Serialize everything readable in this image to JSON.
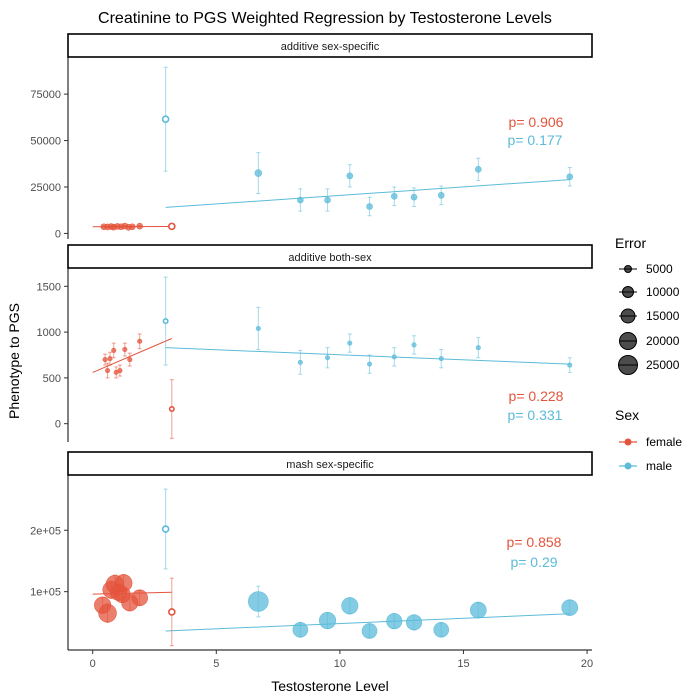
{
  "chart_data": {
    "type": "scatter",
    "title": "Creatinine to PGS Weighted Regression by Testosterone Levels",
    "xlabel": "Testosterone Level",
    "ylabel": "Phenotype to PGS",
    "xlim": [
      -1,
      20.2
    ],
    "x_ticks": [
      0,
      5,
      10,
      15,
      20
    ],
    "x_tick_labels": [
      "0",
      "5",
      "10",
      "15",
      "20"
    ],
    "grid": false,
    "legend_placement": "right",
    "colors": {
      "female": "#E4543C",
      "male": "#5BBBD9"
    },
    "legends": {
      "error": {
        "title": "Error",
        "entries": [
          "5000",
          "10000",
          "15000",
          "20000",
          "25000"
        ]
      },
      "sex": {
        "title": "Sex",
        "entries": [
          {
            "key": "female",
            "label": "female"
          },
          {
            "key": "male",
            "label": "male"
          }
        ]
      }
    },
    "panels": [
      {
        "strip": "additive sex-specific",
        "ylim": [
          -3000,
          95000
        ],
        "y_ticks": [
          0,
          25000,
          50000,
          75000
        ],
        "y_tick_labels": [
          "0",
          "25000",
          "50000",
          "75000"
        ],
        "pvalues": [
          {
            "sex": "female",
            "label": "p= 0.906"
          },
          {
            "sex": "male",
            "label": "p= 0.177"
          }
        ],
        "series": [
          {
            "sex": "female",
            "points": [
              {
                "x": 0.45,
                "y": 3600,
                "err": 300,
                "size": 1000
              },
              {
                "x": 0.6,
                "y": 3500,
                "err": 300,
                "size": 1000
              },
              {
                "x": 0.75,
                "y": 3700,
                "err": 300,
                "size": 1000
              },
              {
                "x": 0.85,
                "y": 3400,
                "err": 300,
                "size": 1000
              },
              {
                "x": 1.0,
                "y": 3800,
                "err": 300,
                "size": 1000
              },
              {
                "x": 1.15,
                "y": 3600,
                "err": 300,
                "size": 1000
              },
              {
                "x": 1.3,
                "y": 4000,
                "err": 300,
                "size": 1000
              },
              {
                "x": 1.45,
                "y": 3300,
                "err": 300,
                "size": 1000
              },
              {
                "x": 1.6,
                "y": 3600,
                "err": 300,
                "size": 1000
              },
              {
                "x": 1.9,
                "y": 3900,
                "err": 300,
                "size": 1000
              },
              {
                "x": 3.2,
                "y": 3800,
                "err": 1200,
                "size": 1000,
                "open": true
              }
            ],
            "fit": {
              "x": [
                0,
                3.2
              ],
              "y": [
                3600,
                3700
              ]
            }
          },
          {
            "sex": "male",
            "points": [
              {
                "x": 2.95,
                "y": 61500,
                "err": 28000,
                "size": 1000,
                "open": true
              },
              {
                "x": 6.7,
                "y": 32500,
                "err": 11000,
                "size": 3000
              },
              {
                "x": 8.4,
                "y": 18000,
                "err": 6000,
                "size": 2000
              },
              {
                "x": 9.5,
                "y": 18000,
                "err": 6000,
                "size": 2000
              },
              {
                "x": 10.4,
                "y": 31000,
                "err": 6000,
                "size": 2000
              },
              {
                "x": 11.2,
                "y": 14500,
                "err": 5000,
                "size": 2000
              },
              {
                "x": 12.2,
                "y": 20000,
                "err": 5000,
                "size": 2000
              },
              {
                "x": 13.0,
                "y": 19500,
                "err": 5000,
                "size": 2000
              },
              {
                "x": 14.1,
                "y": 20500,
                "err": 5000,
                "size": 2000
              },
              {
                "x": 15.6,
                "y": 34500,
                "err": 6000,
                "size": 2000
              },
              {
                "x": 19.3,
                "y": 30500,
                "err": 5000,
                "size": 2000
              }
            ],
            "fit": {
              "x": [
                2.95,
                19.3
              ],
              "y": [
                14000,
                29000
              ]
            }
          }
        ]
      },
      {
        "strip": "additive both-sex",
        "ylim": [
          -200,
          1700
        ],
        "y_ticks": [
          0,
          500,
          1000,
          1500
        ],
        "y_tick_labels": [
          "0",
          "500",
          "1000",
          "1500"
        ],
        "pvalues": [
          {
            "sex": "female",
            "label": "p= 0.228"
          },
          {
            "sex": "male",
            "label": "p= 0.331"
          }
        ],
        "series": [
          {
            "sex": "female",
            "points": [
              {
                "x": 0.5,
                "y": 700,
                "err": 60,
                "size": 100
              },
              {
                "x": 0.6,
                "y": 580,
                "err": 80,
                "size": 100
              },
              {
                "x": 0.7,
                "y": 710,
                "err": 70,
                "size": 100
              },
              {
                "x": 0.85,
                "y": 800,
                "err": 80,
                "size": 100
              },
              {
                "x": 0.95,
                "y": 560,
                "err": 60,
                "size": 100
              },
              {
                "x": 1.1,
                "y": 580,
                "err": 60,
                "size": 100
              },
              {
                "x": 1.3,
                "y": 810,
                "err": 70,
                "size": 100
              },
              {
                "x": 1.5,
                "y": 700,
                "err": 70,
                "size": 100
              },
              {
                "x": 1.9,
                "y": 900,
                "err": 80,
                "size": 100
              },
              {
                "x": 3.2,
                "y": 160,
                "err": 320,
                "size": 100,
                "open": true
              }
            ],
            "fit": {
              "x": [
                0,
                3.2
              ],
              "y": [
                560,
                930
              ]
            }
          },
          {
            "sex": "male",
            "points": [
              {
                "x": 2.95,
                "y": 1120,
                "err": 480,
                "size": 100,
                "open": true
              },
              {
                "x": 6.7,
                "y": 1040,
                "err": 230,
                "size": 100
              },
              {
                "x": 8.4,
                "y": 670,
                "err": 130,
                "size": 100
              },
              {
                "x": 9.5,
                "y": 720,
                "err": 110,
                "size": 100
              },
              {
                "x": 10.4,
                "y": 880,
                "err": 100,
                "size": 100
              },
              {
                "x": 11.2,
                "y": 650,
                "err": 100,
                "size": 100
              },
              {
                "x": 12.2,
                "y": 730,
                "err": 100,
                "size": 100
              },
              {
                "x": 13.0,
                "y": 860,
                "err": 100,
                "size": 100
              },
              {
                "x": 14.1,
                "y": 710,
                "err": 100,
                "size": 100
              },
              {
                "x": 15.6,
                "y": 830,
                "err": 110,
                "size": 100
              },
              {
                "x": 19.3,
                "y": 640,
                "err": 80,
                "size": 100
              }
            ],
            "fit": {
              "x": [
                2.95,
                19.3
              ],
              "y": [
                830,
                650
              ]
            }
          }
        ]
      },
      {
        "strip": "mash sex-specific",
        "ylim": [
          5000,
          290000
        ],
        "y_ticks": [
          100000,
          200000
        ],
        "y_tick_labels": [
          "1e+05",
          "2e+05"
        ],
        "pvalues": [
          {
            "sex": "female",
            "label": "p= 0.858"
          },
          {
            "sex": "male",
            "label": "p= 0.29"
          }
        ],
        "series": [
          {
            "sex": "female",
            "points": [
              {
                "x": 0.4,
                "y": 78000,
                "err": 12000,
                "size": 17000
              },
              {
                "x": 0.6,
                "y": 65000,
                "err": 15000,
                "size": 20000
              },
              {
                "x": 0.75,
                "y": 103000,
                "err": 14000,
                "size": 18000
              },
              {
                "x": 0.9,
                "y": 112000,
                "err": 15000,
                "size": 20000
              },
              {
                "x": 1.05,
                "y": 99000,
                "err": 13000,
                "size": 17000
              },
              {
                "x": 1.25,
                "y": 114000,
                "err": 14000,
                "size": 18000
              },
              {
                "x": 1.2,
                "y": 95000,
                "err": 12000,
                "size": 16000
              },
              {
                "x": 1.5,
                "y": 82000,
                "err": 13000,
                "size": 17000
              },
              {
                "x": 1.9,
                "y": 90000,
                "err": 12000,
                "size": 16000
              },
              {
                "x": 3.2,
                "y": 67000,
                "err": 55000,
                "size": 1000,
                "open": true
              }
            ],
            "fit": {
              "x": [
                0,
                3.2
              ],
              "y": [
                96000,
                99000
              ]
            }
          },
          {
            "sex": "male",
            "points": [
              {
                "x": 2.95,
                "y": 202000,
                "err": 65000,
                "size": 1000,
                "open": true
              },
              {
                "x": 6.7,
                "y": 84000,
                "err": 25000,
                "size": 25000
              },
              {
                "x": 8.4,
                "y": 38000,
                "err": 12000,
                "size": 14000
              },
              {
                "x": 9.5,
                "y": 53000,
                "err": 13000,
                "size": 17000
              },
              {
                "x": 10.4,
                "y": 77000,
                "err": 13000,
                "size": 17000
              },
              {
                "x": 11.2,
                "y": 36000,
                "err": 10000,
                "size": 14000
              },
              {
                "x": 12.2,
                "y": 52000,
                "err": 12000,
                "size": 15000
              },
              {
                "x": 13.0,
                "y": 50000,
                "err": 12000,
                "size": 15000
              },
              {
                "x": 14.1,
                "y": 38000,
                "err": 11000,
                "size": 14000
              },
              {
                "x": 15.6,
                "y": 70000,
                "err": 12000,
                "size": 16000
              },
              {
                "x": 19.3,
                "y": 74000,
                "err": 12000,
                "size": 16000
              }
            ],
            "fit": {
              "x": [
                2.95,
                19.3
              ],
              "y": [
                36000,
                64000
              ]
            }
          }
        ]
      }
    ]
  }
}
